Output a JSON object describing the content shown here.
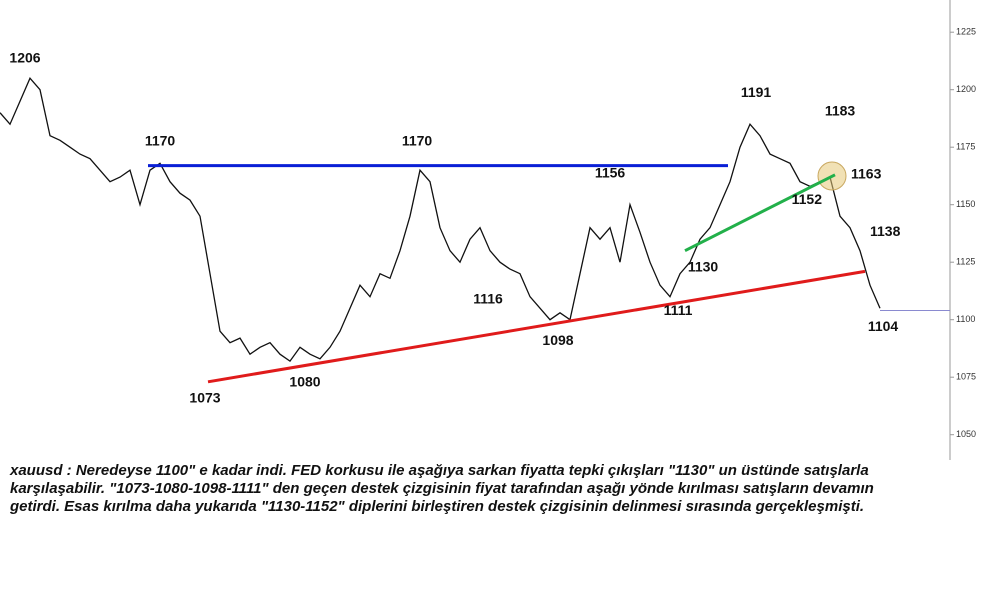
{
  "chart_data": {
    "type": "line",
    "series": [
      {
        "name": "xauusd",
        "color": "#111111",
        "values": [
          1190,
          1185,
          1195,
          1205,
          1200,
          1180,
          1178,
          1175,
          1172,
          1170,
          1165,
          1160,
          1162,
          1165,
          1150,
          1165,
          1168,
          1160,
          1155,
          1152,
          1145,
          1120,
          1095,
          1090,
          1092,
          1085,
          1088,
          1090,
          1085,
          1082,
          1088,
          1085,
          1083,
          1088,
          1095,
          1105,
          1115,
          1110,
          1120,
          1118,
          1130,
          1145,
          1165,
          1160,
          1140,
          1130,
          1125,
          1135,
          1140,
          1130,
          1125,
          1122,
          1120,
          1110,
          1105,
          1100,
          1103,
          1100,
          1120,
          1140,
          1135,
          1140,
          1125,
          1150,
          1138,
          1125,
          1115,
          1110,
          1120,
          1125,
          1135,
          1140,
          1150,
          1160,
          1175,
          1185,
          1180,
          1172,
          1170,
          1168,
          1160,
          1158,
          1160,
          1162,
          1145,
          1140,
          1130,
          1115,
          1105
        ]
      }
    ],
    "xlim": [
      0,
      95
    ],
    "ylim": [
      1039,
      1239
    ],
    "yticks": [
      1050,
      1075,
      1100,
      1125,
      1150,
      1175,
      1200,
      1225
    ],
    "trend_lines": [
      {
        "color": "#0a1fd6",
        "x": [
          14.8,
          72.8
        ],
        "y": [
          1167,
          1167
        ]
      },
      {
        "color": "#e01b1b",
        "x": [
          20.8,
          86.5
        ],
        "y": [
          1073,
          1121
        ]
      },
      {
        "color": "#22b04a",
        "x": [
          68.5,
          83.5
        ],
        "y": [
          1130,
          1163
        ]
      }
    ],
    "price_line": {
      "color": "#8a8ad0",
      "value": 1104
    },
    "annotations": [
      {
        "x": 2.5,
        "value": 1206,
        "position": "above"
      },
      {
        "x": 16,
        "value": 1170,
        "position": "above"
      },
      {
        "x": 41.7,
        "value": 1170,
        "position": "above"
      },
      {
        "x": 61,
        "value": 1156,
        "position": "above"
      },
      {
        "x": 75.6,
        "value": 1191,
        "position": "above"
      },
      {
        "x": 84,
        "value": 1183,
        "position": "above"
      },
      {
        "x": 84.3,
        "value": 1163,
        "position": "right"
      },
      {
        "x": 83,
        "value": 1152,
        "position": "left"
      },
      {
        "x": 86.2,
        "value": 1138,
        "position": "right"
      },
      {
        "x": 70.3,
        "value": 1130,
        "position": "below"
      },
      {
        "x": 48.8,
        "value": 1116,
        "position": "below"
      },
      {
        "x": 55.8,
        "value": 1098,
        "position": "below"
      },
      {
        "x": 67.8,
        "value": 1111,
        "position": "below"
      },
      {
        "x": 88.3,
        "value": 1104,
        "position": "below"
      },
      {
        "x": 20.5,
        "value": 1073,
        "position": "below"
      },
      {
        "x": 30.5,
        "value": 1080,
        "position": "below"
      }
    ],
    "caption": "xauusd : Neredeyse 1100\" e kadar indi. FED korkusu ile aşağıya sarkan fiyatta tepki çıkışları \"1130\" un üstünde satışlarla karşılaşabilir. \"1073-1080-1098-1111\" den geçen destek çizgisinin fiyat tarafından aşağı yönde kırılması satışların devamın getirdi. Esas kırılma daha yukarıda \"1130-1152\" diplerini birleştiren destek çizgisinin delinmesi sırasında gerçekleşmişti."
  }
}
